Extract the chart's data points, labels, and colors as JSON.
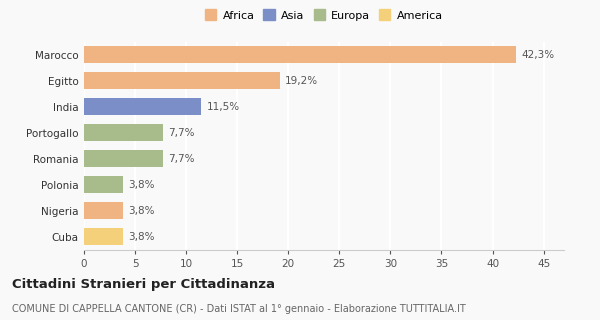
{
  "categories": [
    "Marocco",
    "Egitto",
    "India",
    "Portogallo",
    "Romania",
    "Polonia",
    "Nigeria",
    "Cuba"
  ],
  "values": [
    42.3,
    19.2,
    11.5,
    7.7,
    7.7,
    3.8,
    3.8,
    3.8
  ],
  "labels": [
    "42,3%",
    "19,2%",
    "11,5%",
    "7,7%",
    "7,7%",
    "3,8%",
    "3,8%",
    "3,8%"
  ],
  "bar_colors": [
    "#f0b482",
    "#f0b482",
    "#7b8ec8",
    "#a8bb8a",
    "#a8bb8a",
    "#a8bb8a",
    "#f0b482",
    "#f5d07a"
  ],
  "legend_items": [
    {
      "label": "Africa",
      "color": "#f0b482"
    },
    {
      "label": "Asia",
      "color": "#7b8ec8"
    },
    {
      "label": "Europa",
      "color": "#a8bb8a"
    },
    {
      "label": "America",
      "color": "#f5d07a"
    }
  ],
  "xlim": [
    0,
    47
  ],
  "xticks": [
    0,
    5,
    10,
    15,
    20,
    25,
    30,
    35,
    40,
    45
  ],
  "title": "Cittadini Stranieri per Cittadinanza",
  "subtitle": "COMUNE DI CAPPELLA CANTONE (CR) - Dati ISTAT al 1° gennaio - Elaborazione TUTTITALIA.IT",
  "background_color": "#f9f9f9",
  "grid_color": "#ffffff",
  "bar_height": 0.65,
  "label_fontsize": 7.5,
  "ytick_fontsize": 7.5,
  "xtick_fontsize": 7.5,
  "legend_fontsize": 8.0,
  "title_fontsize": 9.5,
  "subtitle_fontsize": 7.0
}
